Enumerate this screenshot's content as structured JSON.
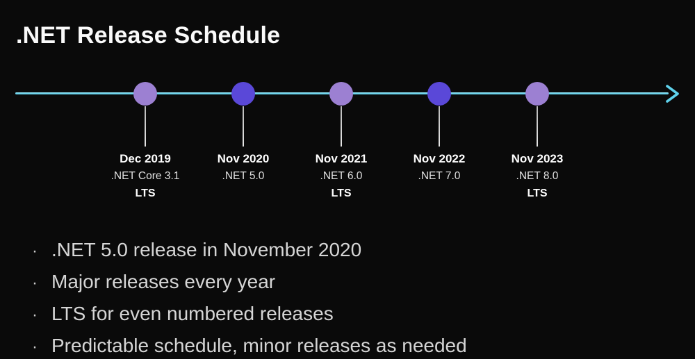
{
  "title": ".NET Release Schedule",
  "colors": {
    "background": "#0a0a0a",
    "timeline_line": "#5fd2ec",
    "lts_dot": "#9c80d2",
    "non_lts_dot": "#5a48d8",
    "connector": "#d9d9d9",
    "text_primary": "#ffffff",
    "text_secondary": "#d6d6d6"
  },
  "timeline": {
    "milestones": [
      {
        "date": "Dec 2019",
        "version": ".NET Core 3.1",
        "lts": "LTS",
        "dot_color": "#9c80d2"
      },
      {
        "date": "Nov 2020",
        "version": ".NET 5.0",
        "lts": "",
        "dot_color": "#5a48d8"
      },
      {
        "date": "Nov 2021",
        "version": ".NET 6.0",
        "lts": "LTS",
        "dot_color": "#9c80d2"
      },
      {
        "date": "Nov 2022",
        "version": ".NET 7.0",
        "lts": "",
        "dot_color": "#5a48d8"
      },
      {
        "date": "Nov 2023",
        "version": ".NET 8.0",
        "lts": "LTS",
        "dot_color": "#9c80d2"
      }
    ]
  },
  "bullet_char": "·",
  "bullets": [
    ".NET 5.0 release in November 2020",
    "Major releases every year",
    "LTS for even numbered releases",
    "Predictable schedule, minor releases as needed"
  ]
}
